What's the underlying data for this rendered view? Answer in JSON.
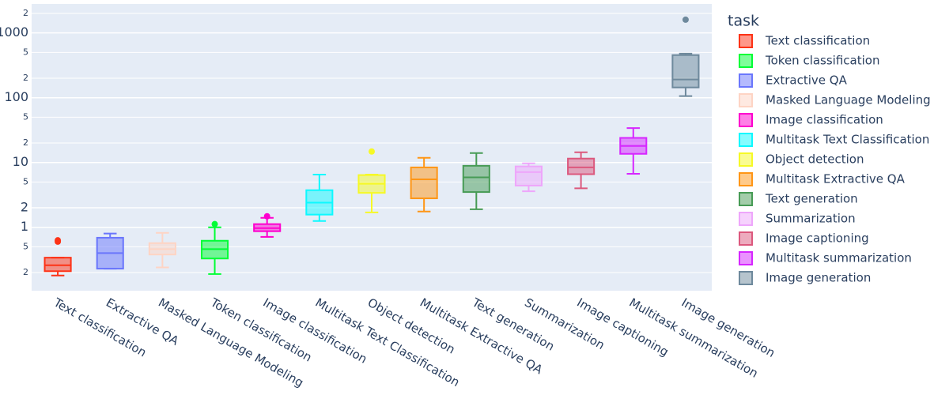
{
  "chart_data": {
    "type": "box",
    "log_y": true,
    "grid": true,
    "legend_title": "task",
    "legend_position": "right",
    "ylim": [
      0.105,
      2800
    ],
    "yticks": [
      {
        "value": 0.2,
        "label": "2"
      },
      {
        "value": 0.5,
        "label": "5"
      },
      1,
      2,
      {
        "value": 5,
        "label": "5"
      },
      10,
      {
        "value": 20,
        "label": "2"
      },
      {
        "value": 50,
        "label": "5"
      },
      100,
      {
        "value": 200,
        "label": "2"
      },
      {
        "value": 500,
        "label": "5"
      },
      1000,
      {
        "value": 2000,
        "label": "2"
      }
    ],
    "categories": [
      "Text classification",
      "Extractive QA",
      "Masked Language Modeling",
      "Token classification",
      "Image classification",
      "Multitask Text Classification",
      "Object detection",
      "Multitask Extractive QA",
      "Text generation",
      "Summarization",
      "Image captioning",
      "Multitask summarization",
      "Image generation"
    ],
    "series": [
      {
        "name": "Text classification",
        "color": "#FD3216",
        "lower": 0.18,
        "q1": 0.21,
        "median": 0.26,
        "q3": 0.34,
        "upper": 0.34,
        "outliers": [
          0.6,
          0.63
        ]
      },
      {
        "name": "Token classification",
        "color": "#00FE35",
        "lower": 0.19,
        "q1": 0.33,
        "median": 0.46,
        "q3": 0.62,
        "upper": 1.0,
        "outliers": [
          1.12
        ]
      },
      {
        "name": "Extractive QA",
        "color": "#6A76FC",
        "lower": 0.23,
        "q1": 0.23,
        "median": 0.4,
        "q3": 0.69,
        "upper": 0.8,
        "outliers": []
      },
      {
        "name": "Masked Language Modeling",
        "color": "#FED4C4",
        "lower": 0.24,
        "q1": 0.38,
        "median": 0.46,
        "q3": 0.57,
        "upper": 0.82,
        "outliers": []
      },
      {
        "name": "Image classification",
        "color": "#FE00CE",
        "lower": 0.71,
        "q1": 0.87,
        "median": 0.97,
        "q3": 1.12,
        "upper": 1.4,
        "outliers": [
          1.48
        ]
      },
      {
        "name": "Multitask Text Classification",
        "color": "#0DF9FF",
        "lower": 1.25,
        "q1": 1.57,
        "median": 2.4,
        "q3": 3.74,
        "upper": 6.5,
        "outliers": []
      },
      {
        "name": "Object detection",
        "color": "#F6F926",
        "lower": 1.7,
        "q1": 3.4,
        "median": 4.7,
        "q3": 6.4,
        "upper": 6.5,
        "outliers": [
          14.8
        ]
      },
      {
        "name": "Multitask Extractive QA",
        "color": "#FF9616",
        "lower": 1.75,
        "q1": 2.8,
        "median": 5.5,
        "q3": 8.4,
        "upper": 11.8,
        "outliers": []
      },
      {
        "name": "Text generation",
        "color": "#479B55",
        "lower": 1.9,
        "q1": 3.5,
        "median": 5.9,
        "q3": 8.9,
        "upper": 14,
        "outliers": []
      },
      {
        "name": "Summarization",
        "color": "#EEA6FB",
        "lower": 3.6,
        "q1": 4.4,
        "median": 7.1,
        "q3": 8.7,
        "upper": 9.7,
        "outliers": []
      },
      {
        "name": "Image captioning",
        "color": "#DC587D",
        "lower": 4.0,
        "q1": 6.6,
        "median": 8.4,
        "q3": 11.5,
        "upper": 14.4,
        "outliers": []
      },
      {
        "name": "Multitask summarization",
        "color": "#D626FF",
        "lower": 6.7,
        "q1": 13.6,
        "median": 18,
        "q3": 24,
        "upper": 34,
        "outliers": []
      },
      {
        "name": "Image generation",
        "color": "#6E899C",
        "lower": 106,
        "q1": 144,
        "median": 191,
        "q3": 455,
        "upper": 480,
        "outliers": [
          1600
        ]
      }
    ]
  }
}
